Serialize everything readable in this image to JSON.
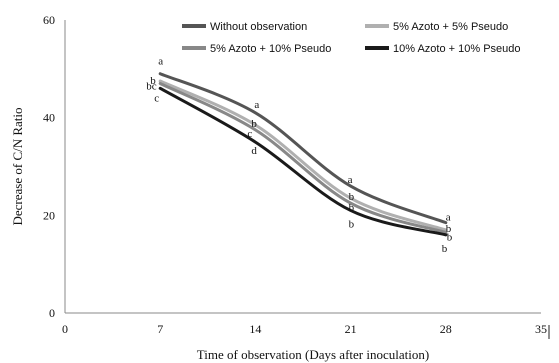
{
  "chart_data": {
    "type": "line",
    "xlabel": "Time of observation (Days after inoculation)",
    "ylabel": "Decrease of  C/N Ratio",
    "xlim": [
      0,
      35
    ],
    "ylim": [
      0,
      60
    ],
    "x_ticks": [
      "0",
      "7",
      "14",
      "21",
      "28",
      "35"
    ],
    "y_ticks": [
      "0",
      "20",
      "40",
      "60"
    ],
    "grid": false,
    "legend_position": "top",
    "x": [
      7,
      14,
      21,
      28
    ],
    "series": [
      {
        "name": "Without observation",
        "values": [
          49,
          41,
          26,
          18.5
        ],
        "color": "#555555",
        "labels": [
          "a",
          "a",
          "a",
          "a"
        ]
      },
      {
        "name": "5% Azoto + 5% Pseudo",
        "values": [
          47.5,
          38.5,
          23.5,
          17
        ],
        "color": "#b0b0b0",
        "labels": [
          "b",
          "b",
          "b",
          "b"
        ]
      },
      {
        "name": "5% Azoto + 10% Pseudo",
        "values": [
          47,
          37.5,
          22.5,
          16.5
        ],
        "color": "#888888",
        "labels": [
          "bc",
          "c",
          "b",
          "b"
        ]
      },
      {
        "name": "10% Azoto + 10% Pseudo",
        "values": [
          46,
          35,
          21,
          16
        ],
        "color": "#1a1a1a",
        "labels": [
          "c",
          "d",
          "b",
          "b"
        ]
      }
    ]
  }
}
